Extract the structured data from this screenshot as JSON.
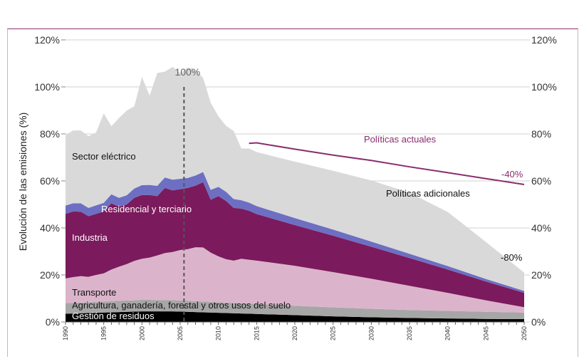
{
  "chart_data": {
    "type": "area",
    "ylabel": "Evolución de las emisiones (%)",
    "xlim": [
      1990,
      2050
    ],
    "ylim": [
      0,
      120
    ],
    "y_ticks": [
      "0%",
      "20%",
      "40%",
      "60%",
      "80%",
      "100%",
      "120%"
    ],
    "y_tick_values": [
      0,
      20,
      40,
      60,
      80,
      100,
      120
    ],
    "x_ticks": [
      "1990",
      "1995",
      "2000",
      "2005",
      "2010",
      "2015",
      "2020",
      "2025",
      "2030",
      "2035",
      "2040",
      "2045",
      "2050"
    ],
    "base_year_marker": {
      "year": 2005.5,
      "label": "100%"
    },
    "x": [
      1990,
      1991,
      1992,
      1993,
      1994,
      1995,
      1996,
      1997,
      1998,
      1999,
      2000,
      2001,
      2002,
      2003,
      2004,
      2005,
      2006,
      2007,
      2008,
      2009,
      2010,
      2011,
      2012,
      2013,
      2014,
      2015,
      2020,
      2025,
      2030,
      2035,
      2040,
      2045,
      2050
    ],
    "series": [
      {
        "name": "Gestión de residuos",
        "color": "#000000",
        "values": [
          3.5,
          3.6,
          3.7,
          3.8,
          3.9,
          4.0,
          4.1,
          4.2,
          4.3,
          4.4,
          4.5,
          4.5,
          4.5,
          4.5,
          4.5,
          4.4,
          4.3,
          4.2,
          4.1,
          4.0,
          3.9,
          3.8,
          3.7,
          3.6,
          3.5,
          3.4,
          2.9,
          2.4,
          2.0,
          1.7,
          1.5,
          1.3,
          1.2
        ]
      },
      {
        "name": "Agricultura, ganadería, forestal y otros usos del suelo",
        "color": "#a6a6a6",
        "values": [
          4.5,
          4.5,
          4.5,
          4.6,
          4.6,
          4.7,
          4.7,
          4.8,
          4.8,
          4.8,
          4.9,
          4.9,
          4.8,
          4.8,
          4.8,
          4.7,
          4.7,
          4.6,
          4.6,
          4.5,
          4.5,
          4.4,
          4.4,
          4.3,
          4.3,
          4.2,
          4.0,
          3.8,
          3.6,
          3.4,
          3.2,
          3.0,
          2.8
        ]
      },
      {
        "name": "Transporte",
        "color": "#dbb4cb",
        "values": [
          10.5,
          11.0,
          11.3,
          10.8,
          11.5,
          12.0,
          13.5,
          14.5,
          15.5,
          16.8,
          17.5,
          18.0,
          19.0,
          20.0,
          20.5,
          21.5,
          22.0,
          23.0,
          23.0,
          21.0,
          19.5,
          18.5,
          18.0,
          19.0,
          18.7,
          18.5,
          17.0,
          15.0,
          12.8,
          10.3,
          7.7,
          4.9,
          2.3
        ]
      },
      {
        "name": "Industria",
        "color": "#7b1a5c",
        "values": [
          27.5,
          27.9,
          27.4,
          25.8,
          26.0,
          26.3,
          28.2,
          25.5,
          25.4,
          26.8,
          27.1,
          26.6,
          25.2,
          27.7,
          26.2,
          25.9,
          26.0,
          26.2,
          27.8,
          22.5,
          25.6,
          24.8,
          22.4,
          21.3,
          20.8,
          19.8,
          17.3,
          15.5,
          13.6,
          11.8,
          9.9,
          8.0,
          6.1
        ]
      },
      {
        "name": "Residencial y terciario",
        "color": "#6d6fc2",
        "values": [
          3.5,
          3.5,
          3.6,
          3.5,
          3.6,
          3.7,
          3.8,
          3.8,
          3.9,
          4.0,
          4.2,
          4.3,
          4.4,
          4.5,
          4.5,
          4.4,
          4.3,
          4.3,
          4.3,
          4.2,
          4.0,
          3.9,
          3.8,
          3.6,
          3.5,
          3.4,
          3.0,
          2.6,
          2.2,
          1.8,
          1.5,
          1.1,
          0.8
        ]
      },
      {
        "name": "Sector eléctrico",
        "color": "#d9d9d9",
        "values": [
          30.0,
          31.0,
          31.0,
          30.5,
          31.0,
          38.0,
          29.0,
          34.0,
          36.0,
          35.0,
          46.0,
          38.0,
          48.0,
          45.0,
          48.0,
          45.0,
          47.0,
          45.0,
          40.0,
          37.0,
          30.0,
          28.0,
          29.0,
          22.0,
          23.0,
          23.0,
          24.0,
          25.0,
          26.0,
          26.0,
          23.0,
          15.7,
          7.8
        ]
      }
    ],
    "projections": [
      {
        "name": "Políticas actuales",
        "color": "#8a2d6e",
        "x": [
          2014,
          2015,
          2020,
          2025,
          2030,
          2035,
          2040,
          2045,
          2050
        ],
        "values": [
          76,
          76.2,
          73.5,
          71,
          68.7,
          66,
          63.5,
          61,
          58.5
        ]
      }
    ],
    "annotations": [
      {
        "text": "Políticas actuales",
        "color": "#8a2d6e"
      },
      {
        "text": "-40%",
        "color": "#8a2d6e"
      },
      {
        "text": "Políticas adicionales",
        "color": "#111111"
      },
      {
        "text": "-80%",
        "color": "#111111"
      }
    ]
  }
}
